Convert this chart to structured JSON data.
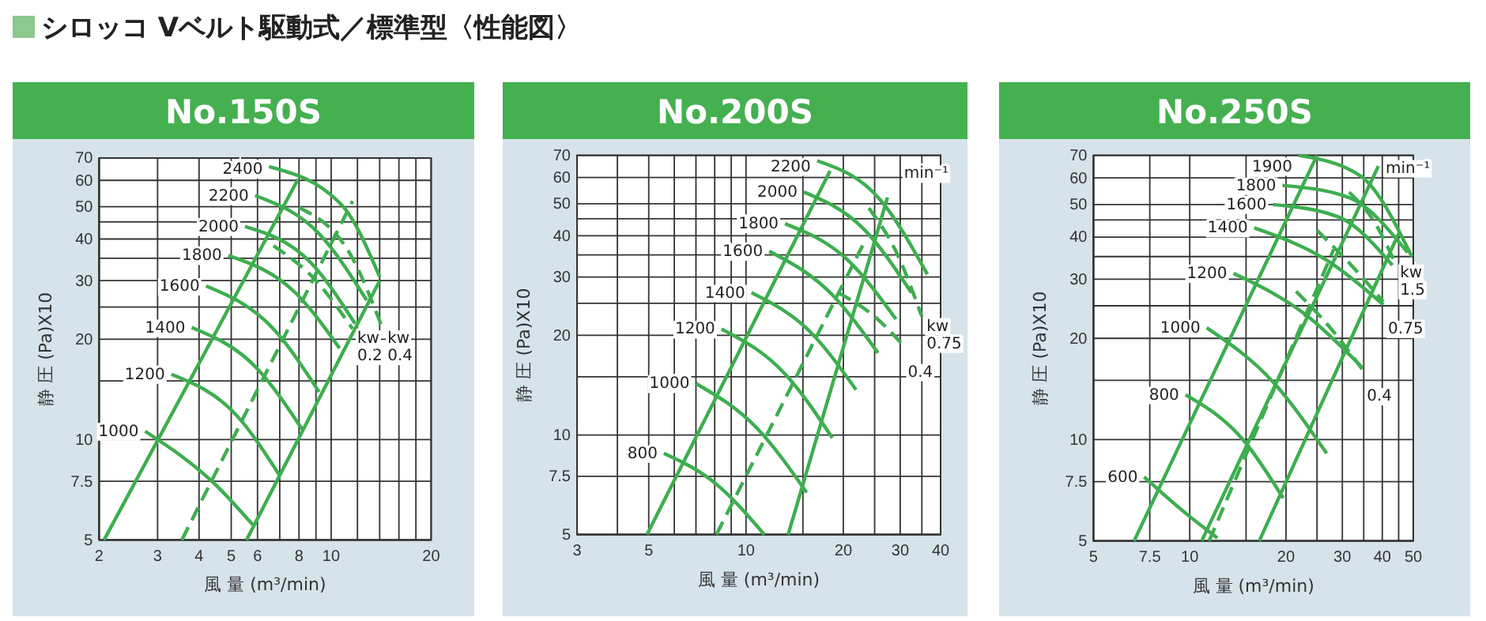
{
  "chart_data": [
    {
      "type": "line",
      "title": "No.150S",
      "xlabel": "風 量 (m³/min)",
      "ylabel": "静 圧 (Pa)X10",
      "log": "xy",
      "grid": true,
      "xlim": [
        2,
        20
      ],
      "ylim": [
        5,
        70
      ],
      "xticks": [
        2,
        3,
        4,
        5,
        6,
        {
          "value": 7,
          "label": null
        },
        8,
        {
          "value": 9,
          "label": null
        },
        10,
        {
          "value": 12,
          "label": null
        },
        {
          "value": 14,
          "label": null
        },
        {
          "value": 16,
          "label": null
        },
        {
          "value": 18,
          "label": null
        },
        20
      ],
      "yticks": [
        5,
        7.5,
        10,
        {
          "value": 15,
          "label": null
        },
        20,
        {
          "value": 25,
          "label": null
        },
        30,
        {
          "value": 35,
          "label": null
        },
        40,
        {
          "value": 45,
          "label": null
        },
        50,
        60,
        70
      ],
      "subtitle": "シロッコ Vベルト駆動式／標準型〈性能図〉",
      "annotations": [
        "kw",
        "kw"
      ],
      "series": [
        {
          "color": "#3dae4f",
          "x": [
            2.07,
            7.95
          ],
          "values": [
            5,
            60.5
          ]
        },
        {
          "color": "#3dae4f",
          "x": [
            3.55,
            11.6
          ],
          "values": [
            5,
            52
          ],
          "line_style": "dashed"
        },
        {
          "color": "#3dae4f",
          "x": [
            5.56,
            14
          ],
          "values": [
            5,
            30
          ]
        },
        {
          "name": "1000",
          "color": "#3dae4f",
          "x": [
            2.75,
            4.5,
            5.8
          ],
          "values": [
            10.6,
            7.3,
            5.56
          ]
        },
        {
          "name": "1200",
          "color": "#3dae4f",
          "x": [
            3.3,
            5.2,
            7.0
          ],
          "values": [
            15.7,
            11.8,
            7.8
          ]
        },
        {
          "name": "1400",
          "color": "#3dae4f",
          "x": [
            3.8,
            6.0,
            8.2
          ],
          "values": [
            21.7,
            16.3,
            10.7
          ]
        },
        {
          "name": "1600",
          "color": "#3dae4f",
          "x": [
            4.2,
            6.7,
            9.2
          ],
          "values": [
            28.9,
            21.5,
            13.9
          ]
        },
        {
          "name": "1800",
          "color": "#3dae4f",
          "x": [
            4.9,
            7.8,
            10.6
          ],
          "values": [
            35.7,
            27.6,
            18.8
          ]
        },
        {
          "name": "2000",
          "color": "#3dae4f",
          "x": [
            5.5,
            8.7,
            11.8
          ],
          "values": [
            43.6,
            33.9,
            22.3
          ]
        },
        {
          "name": "2200",
          "color": "#3dae4f",
          "x": [
            5.9,
            9.3,
            12.8
          ],
          "values": [
            54,
            41,
            26.2
          ]
        },
        {
          "name": "2400",
          "color": "#3dae4f",
          "x": [
            6.5,
            10.8,
            14
          ],
          "values": [
            66,
            50.4,
            30.8
          ]
        },
        {
          "name": "0.2",
          "color": "#3dae4f",
          "x": [
            6.7,
            9,
            11.6
          ],
          "values": [
            38.2,
            30,
            21.5
          ],
          "line_style": "dashed"
        },
        {
          "name": "0.4",
          "color": "#3dae4f",
          "x": [
            8,
            11.6,
            14.3
          ],
          "values": [
            49.7,
            35,
            21.5
          ],
          "line_style": "dashed"
        }
      ]
    },
    {
      "type": "line",
      "title": "No.200S",
      "xlabel": "風 量 (m³/min)",
      "ylabel": "静 圧 (Pa)X10",
      "log": "xy",
      "grid": true,
      "xlim": [
        3,
        40
      ],
      "ylim": [
        5,
        70
      ],
      "xticks": [
        3,
        {
          "value": 4,
          "label": null
        },
        5,
        {
          "value": 6,
          "label": null
        },
        {
          "value": 7,
          "label": null
        },
        {
          "value": 8,
          "label": null
        },
        {
          "value": 9,
          "label": null
        },
        10,
        {
          "value": 15,
          "label": null
        },
        20,
        {
          "value": 25,
          "label": null
        },
        30,
        {
          "value": 35,
          "label": null
        },
        40
      ],
      "yticks": [
        5,
        7.5,
        10,
        {
          "value": 15,
          "label": null
        },
        20,
        {
          "value": 25,
          "label": null
        },
        30,
        {
          "value": 35,
          "label": null
        },
        40,
        {
          "value": 45,
          "label": null
        },
        50,
        60,
        70
      ],
      "legend_title": "min⁻¹",
      "annotations": [
        "kw"
      ],
      "series": [
        {
          "color": "#3dae4f",
          "x": [
            4.94,
            18.2
          ],
          "values": [
            5,
            62.8
          ]
        },
        {
          "color": "#3dae4f",
          "x": [
            8.1,
            23.2
          ],
          "values": [
            5,
            38.2
          ],
          "line_style": "dashed"
        },
        {
          "color": "#3dae4f",
          "x": [
            13.5,
            27.4
          ],
          "values": [
            5,
            52.2
          ]
        },
        {
          "name": "800",
          "color": "#3dae4f",
          "x": [
            5.57,
            8.1,
            11.4
          ],
          "values": [
            8.8,
            7.1,
            5
          ]
        },
        {
          "name": "1000",
          "color": "#3dae4f",
          "x": [
            7.0,
            10.9,
            15.4
          ],
          "values": [
            14.3,
            10.4,
            6.7
          ]
        },
        {
          "name": "1200",
          "color": "#3dae4f",
          "x": [
            8.4,
            13.2,
            18.5
          ],
          "values": [
            20.9,
            15.3,
            9.8
          ]
        },
        {
          "name": "1400",
          "color": "#3dae4f",
          "x": [
            10.4,
            15.8,
            21.9
          ],
          "values": [
            26.9,
            20.5,
            13.7
          ]
        },
        {
          "name": "1600",
          "color": "#3dae4f",
          "x": [
            11.8,
            18.5,
            25.6
          ],
          "values": [
            35.9,
            26.5,
            17.7
          ]
        },
        {
          "name": "1800",
          "color": "#3dae4f",
          "x": [
            13.2,
            20.7,
            29.1
          ],
          "values": [
            43.5,
            33.7,
            22.4
          ]
        },
        {
          "name": "2000",
          "color": "#3dae4f",
          "x": [
            15.1,
            23.2,
            32.5
          ],
          "values": [
            54.2,
            41.8,
            26.9
          ]
        },
        {
          "name": "2200",
          "color": "#3dae4f",
          "x": [
            16.6,
            26.1,
            36.4
          ],
          "values": [
            67.4,
            51.2,
            30.6
          ]
        },
        {
          "name": "0.75",
          "color": "#3dae4f",
          "x": [
            24,
            29.5,
            35
          ],
          "values": [
            48.5,
            34.9,
            22.8
          ],
          "line_style": "dashed"
        },
        {
          "name": "0.4",
          "color": "#3dae4f",
          "x": [
            19.3,
            25,
            30.6
          ],
          "values": [
            26.9,
            22.8,
            18.7
          ],
          "line_style": "dashed"
        }
      ]
    },
    {
      "type": "line",
      "title": "No.250S",
      "xlabel": "風 量 (m³/min)",
      "ylabel": "静 圧 (Pa)X10",
      "log": "xy",
      "grid": true,
      "xlim": [
        5,
        50
      ],
      "ylim": [
        5,
        70
      ],
      "xticks": [
        5,
        7.5,
        10,
        {
          "value": 15,
          "label": null
        },
        20,
        {
          "value": 25,
          "label": null
        },
        30,
        {
          "value": 35,
          "label": null
        },
        40,
        {
          "value": 45,
          "label": null
        },
        50
      ],
      "yticks": [
        5,
        7.5,
        10,
        {
          "value": 15,
          "label": null
        },
        20,
        {
          "value": 25,
          "label": null
        },
        30,
        {
          "value": 35,
          "label": null
        },
        40,
        {
          "value": 45,
          "label": null
        },
        50,
        60,
        70
      ],
      "legend_title": "min⁻¹",
      "annotations": [
        "kw"
      ],
      "series": [
        {
          "color": "#3dae4f",
          "x": [
            6.7,
            25
          ],
          "values": [
            5,
            70
          ]
        },
        {
          "color": "#3dae4f",
          "x": [
            11.5,
            28.2
          ],
          "values": [
            5,
            36.8
          ],
          "line_style": "dashed"
        },
        {
          "color": "#3dae4f",
          "x": [
            10.9,
            38.9
          ],
          "values": [
            5,
            65
          ]
        },
        {
          "color": "#3dae4f",
          "x": [
            16.5,
            45
          ],
          "values": [
            5,
            41
          ]
        },
        {
          "name": "600",
          "color": "#3dae4f",
          "x": [
            7.2,
            9.4,
            12.2
          ],
          "values": [
            7.75,
            6.2,
            5.1
          ]
        },
        {
          "name": "800",
          "color": "#3dae4f",
          "x": [
            9.7,
            14.8,
            19.6
          ],
          "values": [
            13.6,
            9.9,
            6.7
          ]
        },
        {
          "name": "1000",
          "color": "#3dae4f",
          "x": [
            11.3,
            18.5,
            26.8
          ],
          "values": [
            21.5,
            14.6,
            9.1
          ]
        },
        {
          "name": "1200",
          "color": "#3dae4f",
          "x": [
            13.7,
            23.2,
            34.6
          ],
          "values": [
            31.2,
            23.4,
            16.4
          ]
        },
        {
          "name": "1400",
          "color": "#3dae4f",
          "x": [
            15.9,
            27,
            40.3
          ],
          "values": [
            42.6,
            34,
            25.2
          ]
        },
        {
          "name": "1600",
          "color": "#3dae4f",
          "x": [
            18.2,
            29.2,
            43
          ],
          "values": [
            50,
            45.9,
            33
          ]
        },
        {
          "name": "1800",
          "color": "#3dae4f",
          "x": [
            19.5,
            31.5,
            48
          ],
          "values": [
            57,
            52.4,
            36
          ]
        },
        {
          "name": "1900",
          "color": "#3dae4f",
          "x": [
            21.9,
            34.1,
            49.5
          ],
          "values": [
            70,
            60.9,
            35
          ]
        },
        {
          "name": "1.5",
          "color": "#3dae4f",
          "x": [
            31.5,
            38,
            43.9
          ],
          "values": [
            54.4,
            44,
            33.5
          ],
          "line_style": "dashed"
        },
        {
          "name": "0.75",
          "color": "#3dae4f",
          "x": [
            25,
            32,
            40.3
          ],
          "values": [
            41.9,
            33,
            25.7
          ],
          "line_style": "dashed"
        },
        {
          "name": "0.4",
          "color": "#3dae4f",
          "x": [
            21.5,
            27.5,
            34.6
          ],
          "values": [
            27.6,
            21.5,
            16.2
          ],
          "line_style": "dashed"
        }
      ]
    }
  ]
}
